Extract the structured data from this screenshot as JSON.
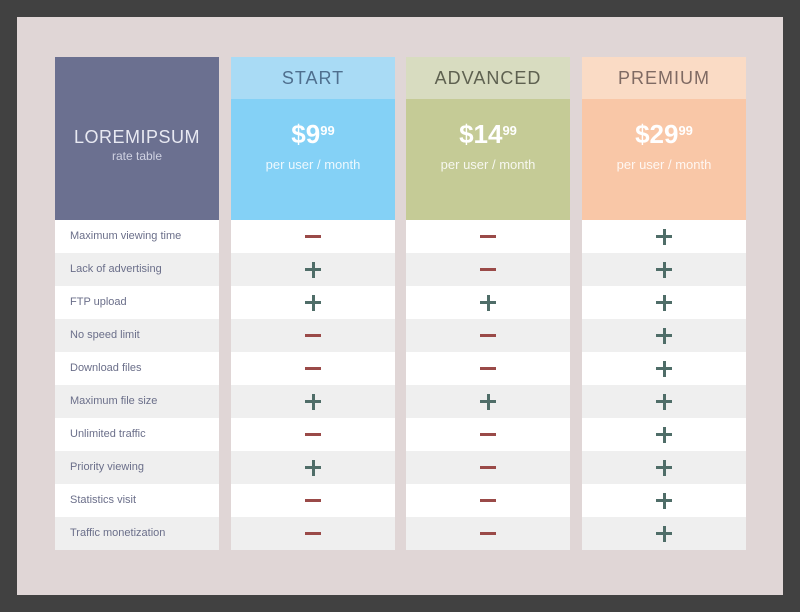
{
  "brand": {
    "title": "LOREMIPSUM",
    "subtitle": "rate table"
  },
  "plans": [
    {
      "name": "START",
      "price": "$9",
      "cents": "99",
      "per": "per user / month",
      "name_bg": "#a9dbf5",
      "name_color": "#4f6f8e",
      "price_bg": "#84d1f6",
      "marks": [
        "minus",
        "plus",
        "plus",
        "minus",
        "minus",
        "plus",
        "minus",
        "plus",
        "minus",
        "minus"
      ]
    },
    {
      "name": "ADVANCED",
      "price": "$14",
      "cents": "99",
      "per": "per user / month",
      "name_bg": "#d8dcc0",
      "name_color": "#5e6150",
      "price_bg": "#c5cb96",
      "marks": [
        "minus",
        "minus",
        "plus",
        "minus",
        "minus",
        "plus",
        "minus",
        "minus",
        "minus",
        "minus"
      ]
    },
    {
      "name": "PREMIUM",
      "price": "$29",
      "cents": "99",
      "per": "per user / month",
      "name_bg": "#fadbc5",
      "name_color": "#7f6a63",
      "price_bg": "#f9c7a7",
      "marks": [
        "plus",
        "plus",
        "plus",
        "plus",
        "plus",
        "plus",
        "plus",
        "plus",
        "plus",
        "plus"
      ]
    }
  ],
  "features": [
    "Maximum viewing time",
    "Lack of advertising",
    "FTP upload",
    "No speed limit",
    "Download files",
    "Maximum file size",
    "Unlimited traffic",
    "Priority viewing",
    "Statistics visit",
    "Traffic monetization"
  ]
}
